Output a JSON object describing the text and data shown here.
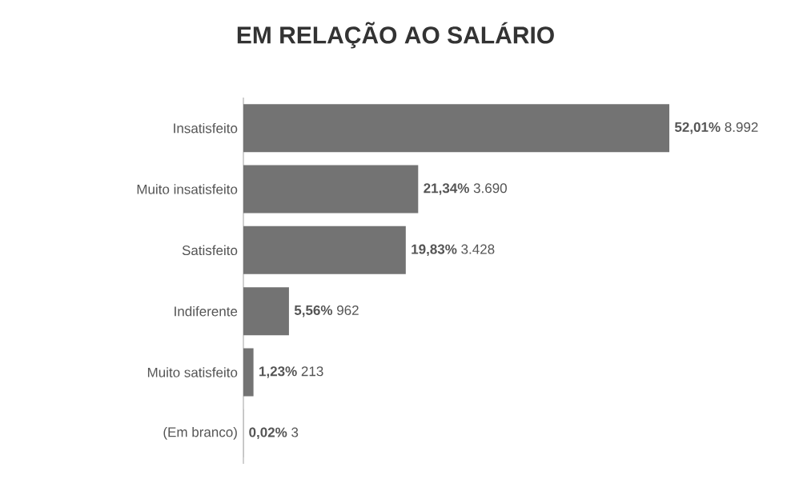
{
  "chart_data": {
    "type": "bar",
    "orientation": "horizontal",
    "title": "EM RELAÇÃO AO SALÁRIO",
    "categories": [
      "Insatisfeito",
      "Muito insatisfeito",
      "Satisfeito",
      "Indiferente",
      "Muito satisfeito",
      "(Em branco)"
    ],
    "values": [
      8992,
      3690,
      3428,
      962,
      213,
      3
    ],
    "value_labels": [
      "**52,01%** 8.992",
      "**21,34%** 3.690",
      "**19,83%** 3.428",
      "**5,56%** 962",
      "**1,23%** 213",
      "**0,02%** 3"
    ],
    "color": "#737373"
  }
}
